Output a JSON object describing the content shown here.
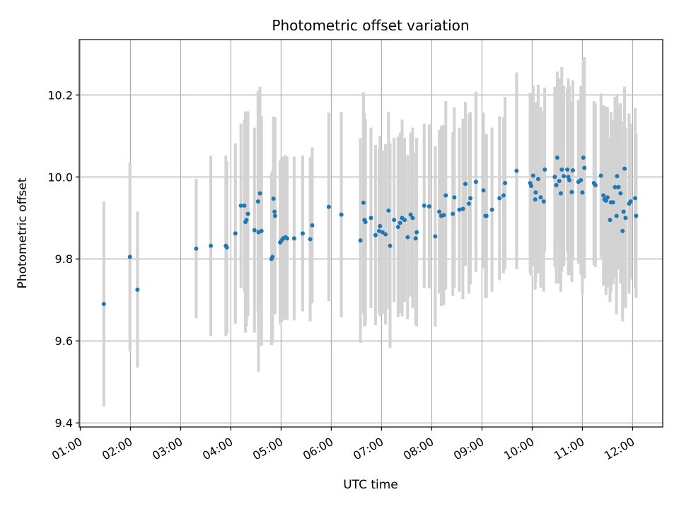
{
  "chart_data": {
    "type": "scatter",
    "title": "Photometric offset variation",
    "xlabel": "UTC time",
    "ylabel": "Photometric offset",
    "x_unit": "hours (UTC)",
    "xlim": [
      0.98,
      12.6
    ],
    "ylim": [
      9.39,
      10.335
    ],
    "x_ticks": [
      {
        "value": 1,
        "label": "01:00"
      },
      {
        "value": 2,
        "label": "02:00"
      },
      {
        "value": 3,
        "label": "03:00"
      },
      {
        "value": 4,
        "label": "04:00"
      },
      {
        "value": 5,
        "label": "05:00"
      },
      {
        "value": 6,
        "label": "06:00"
      },
      {
        "value": 7,
        "label": "07:00"
      },
      {
        "value": 8,
        "label": "08:00"
      },
      {
        "value": 9,
        "label": "09:00"
      },
      {
        "value": 10,
        "label": "10:00"
      },
      {
        "value": 11,
        "label": "11:00"
      },
      {
        "value": 12,
        "label": "12:00"
      }
    ],
    "y_ticks": [
      {
        "value": 9.4,
        "label": "9.4"
      },
      {
        "value": 9.6,
        "label": "9.6"
      },
      {
        "value": 9.8,
        "label": "9.8"
      },
      {
        "value": 10.0,
        "label": "10.0"
      },
      {
        "value": 10.2,
        "label": "10.2"
      }
    ],
    "grid": true,
    "colors": {
      "point": "#1f77b4",
      "errorbar": "#d3d3d3",
      "grid": "#b0b0b0"
    },
    "points": [
      [
        1.47,
        9.69,
        0.25
      ],
      [
        1.99,
        9.805,
        0.23
      ],
      [
        2.14,
        9.725,
        0.19
      ],
      [
        3.31,
        9.825,
        0.17
      ],
      [
        3.6,
        9.832,
        0.22
      ],
      [
        3.9,
        9.832,
        0.22
      ],
      [
        3.92,
        9.828,
        0.21
      ],
      [
        4.09,
        9.862,
        0.22
      ],
      [
        4.2,
        9.93,
        0.2
      ],
      [
        4.27,
        9.93,
        0.21
      ],
      [
        4.29,
        9.89,
        0.27
      ],
      [
        4.31,
        9.895,
        0.26
      ],
      [
        4.34,
        9.91,
        0.25
      ],
      [
        4.47,
        9.87,
        0.25
      ],
      [
        4.54,
        9.94,
        0.27
      ],
      [
        4.55,
        9.865,
        0.34
      ],
      [
        4.58,
        9.96,
        0.26
      ],
      [
        4.61,
        9.868,
        0.28
      ],
      [
        4.81,
        9.8,
        0.21
      ],
      [
        4.83,
        9.805,
        0.21
      ],
      [
        4.85,
        9.947,
        0.2
      ],
      [
        4.87,
        9.915,
        0.23
      ],
      [
        4.88,
        9.905,
        0.24
      ],
      [
        4.98,
        9.84,
        0.2
      ],
      [
        5.01,
        9.845,
        0.2
      ],
      [
        5.04,
        9.85,
        0.2
      ],
      [
        5.09,
        9.853,
        0.2
      ],
      [
        5.12,
        9.85,
        0.2
      ],
      [
        5.26,
        9.85,
        0.2
      ],
      [
        5.43,
        9.862,
        0.19
      ],
      [
        5.58,
        9.848,
        0.2
      ],
      [
        5.62,
        9.882,
        0.19
      ],
      [
        5.95,
        9.927,
        0.23
      ],
      [
        6.2,
        9.908,
        0.25
      ],
      [
        6.58,
        9.845,
        0.25
      ],
      [
        6.64,
        9.937,
        0.27
      ],
      [
        6.66,
        9.895,
        0.26
      ],
      [
        6.68,
        9.89,
        0.25
      ],
      [
        6.79,
        9.9,
        0.22
      ],
      [
        6.88,
        9.858,
        0.22
      ],
      [
        6.95,
        9.868,
        0.2
      ],
      [
        6.97,
        9.88,
        0.22
      ],
      [
        7.02,
        9.865,
        0.2
      ],
      [
        7.08,
        9.86,
        0.22
      ],
      [
        7.14,
        9.918,
        0.24
      ],
      [
        7.17,
        9.832,
        0.25
      ],
      [
        7.25,
        9.895,
        0.2
      ],
      [
        7.33,
        9.878,
        0.22
      ],
      [
        7.37,
        9.888,
        0.22
      ],
      [
        7.41,
        9.9,
        0.24
      ],
      [
        7.46,
        9.895,
        0.2
      ],
      [
        7.52,
        9.853,
        0.2
      ],
      [
        7.58,
        9.908,
        0.2
      ],
      [
        7.62,
        9.9,
        0.22
      ],
      [
        7.68,
        9.85,
        0.21
      ],
      [
        7.7,
        9.865,
        0.23
      ],
      [
        7.85,
        9.93,
        0.2
      ],
      [
        7.95,
        9.928,
        0.2
      ],
      [
        8.07,
        9.855,
        0.22
      ],
      [
        8.15,
        9.915,
        0.2
      ],
      [
        8.19,
        9.905,
        0.22
      ],
      [
        8.24,
        9.907,
        0.22
      ],
      [
        8.28,
        9.955,
        0.23
      ],
      [
        8.42,
        9.91,
        0.2
      ],
      [
        8.45,
        9.95,
        0.22
      ],
      [
        8.55,
        9.92,
        0.2
      ],
      [
        8.62,
        9.922,
        0.22
      ],
      [
        8.67,
        9.983,
        0.2
      ],
      [
        8.74,
        9.935,
        0.22
      ],
      [
        8.77,
        9.948,
        0.21
      ],
      [
        8.88,
        9.988,
        0.22
      ],
      [
        9.03,
        9.967,
        0.19
      ],
      [
        9.07,
        9.905,
        0.2
      ],
      [
        9.09,
        9.905,
        0.2
      ],
      [
        9.2,
        9.92,
        0.2
      ],
      [
        9.35,
        9.948,
        0.2
      ],
      [
        9.43,
        9.955,
        0.19
      ],
      [
        9.46,
        9.985,
        0.21
      ],
      [
        9.69,
        10.015,
        0.24
      ],
      [
        9.96,
        9.985,
        0.22
      ],
      [
        9.98,
        9.978,
        0.22
      ],
      [
        10.02,
        10.003,
        0.22
      ],
      [
        10.06,
        9.945,
        0.22
      ],
      [
        10.07,
        9.962,
        0.22
      ],
      [
        10.12,
        9.995,
        0.23
      ],
      [
        10.17,
        9.95,
        0.22
      ],
      [
        10.23,
        9.94,
        0.22
      ],
      [
        10.25,
        10.018,
        0.2
      ],
      [
        10.45,
        10.0,
        0.22
      ],
      [
        10.48,
        9.98,
        0.24
      ],
      [
        10.5,
        10.047,
        0.21
      ],
      [
        10.54,
        9.99,
        0.25
      ],
      [
        10.57,
        9.96,
        0.24
      ],
      [
        10.59,
        10.018,
        0.25
      ],
      [
        10.63,
        10.002,
        0.22
      ],
      [
        10.7,
        10.018,
        0.2
      ],
      [
        10.72,
        10.0,
        0.24
      ],
      [
        10.74,
        9.992,
        0.23
      ],
      [
        10.79,
        9.963,
        0.22
      ],
      [
        10.81,
        10.016,
        0.22
      ],
      [
        10.92,
        9.988,
        0.2
      ],
      [
        10.97,
        9.992,
        0.23
      ],
      [
        11.0,
        9.962,
        0.25
      ],
      [
        11.02,
        10.047,
        0.24
      ],
      [
        11.04,
        10.022,
        0.27
      ],
      [
        11.23,
        9.985,
        0.2
      ],
      [
        11.26,
        9.98,
        0.2
      ],
      [
        11.37,
        10.003,
        0.2
      ],
      [
        11.42,
        9.955,
        0.22
      ],
      [
        11.44,
        9.945,
        0.2
      ],
      [
        11.47,
        9.942,
        0.23
      ],
      [
        11.5,
        9.95,
        0.22
      ],
      [
        11.55,
        9.895,
        0.2
      ],
      [
        11.57,
        9.938,
        0.22
      ],
      [
        11.61,
        9.938,
        0.2
      ],
      [
        11.65,
        9.975,
        0.22
      ],
      [
        11.68,
        9.905,
        0.24
      ],
      [
        11.72,
        9.975,
        0.2
      ],
      [
        11.69,
        10.002,
        0.2
      ],
      [
        11.76,
        9.96,
        0.22
      ],
      [
        11.8,
        9.868,
        0.22
      ],
      [
        11.82,
        9.915,
        0.22
      ],
      [
        11.84,
        10.02,
        0.2
      ],
      [
        11.86,
        9.9,
        0.22
      ],
      [
        11.93,
        9.935,
        0.22
      ],
      [
        11.96,
        9.94,
        0.19
      ],
      [
        12.05,
        9.948,
        0.22
      ],
      [
        12.07,
        9.905,
        0.2
      ]
    ]
  }
}
